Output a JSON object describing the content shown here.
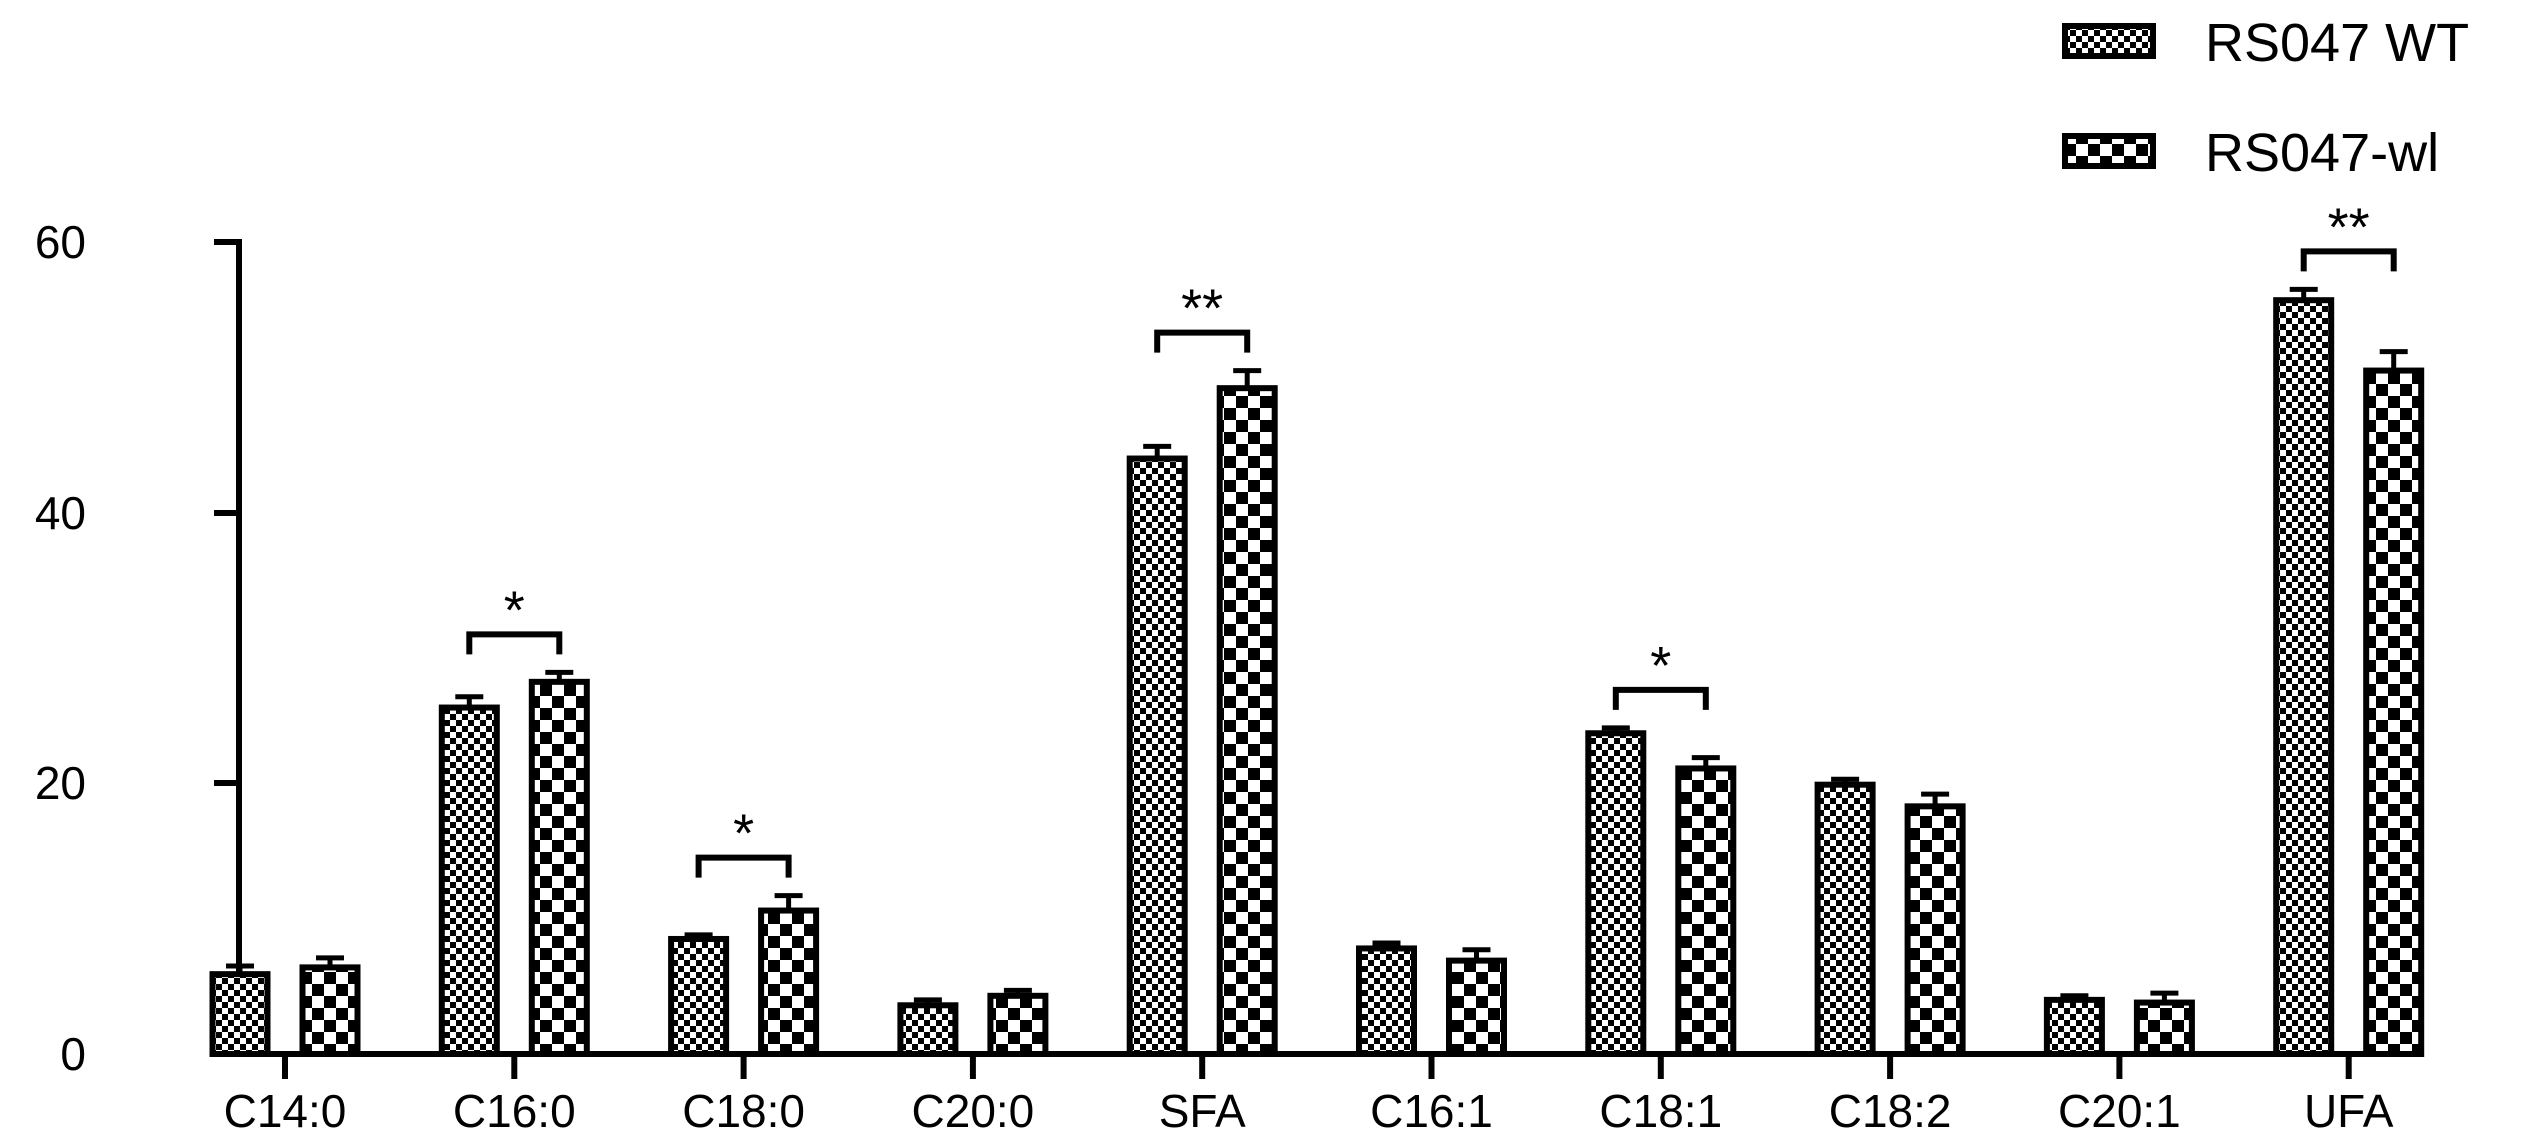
{
  "chart_data": {
    "type": "bar",
    "categories": [
      "C14:0",
      "C16:0",
      "C18:0",
      "C20:0",
      "SFA",
      "C16:1",
      "C18:1",
      "C18:2",
      "C20:1",
      "UFA"
    ],
    "series": [
      {
        "name": "RS047 WT",
        "pattern": "fine-checker",
        "values": [
          5.9,
          25.6,
          8.5,
          3.6,
          44.0,
          7.8,
          23.7,
          19.9,
          4.0,
          55.7
        ],
        "errors": [
          0.6,
          0.8,
          0.3,
          0.4,
          0.9,
          0.4,
          0.4,
          0.4,
          0.3,
          0.8
        ]
      },
      {
        "name": "RS047-wl",
        "pattern": "coarse-checker",
        "values": [
          6.4,
          27.5,
          10.6,
          4.3,
          49.2,
          6.9,
          21.1,
          18.3,
          3.8,
          50.5
        ],
        "errors": [
          0.7,
          0.7,
          1.1,
          0.4,
          1.3,
          0.8,
          0.8,
          0.9,
          0.7,
          1.4
        ]
      }
    ],
    "significance": [
      {
        "category": "C16:0",
        "label": "*"
      },
      {
        "category": "C18:0",
        "label": "*"
      },
      {
        "category": "SFA",
        "label": "**"
      },
      {
        "category": "C18:1",
        "label": "*"
      },
      {
        "category": "UFA",
        "label": "**"
      }
    ],
    "yticks": [
      "0",
      "20",
      "40",
      "60"
    ],
    "ylim": [
      0,
      60
    ],
    "title": "",
    "xlabel": "",
    "ylabel": "",
    "legend_position": "top-right",
    "grid": false,
    "colors": {
      "ink": "#000000",
      "background": "#ffffff"
    }
  }
}
